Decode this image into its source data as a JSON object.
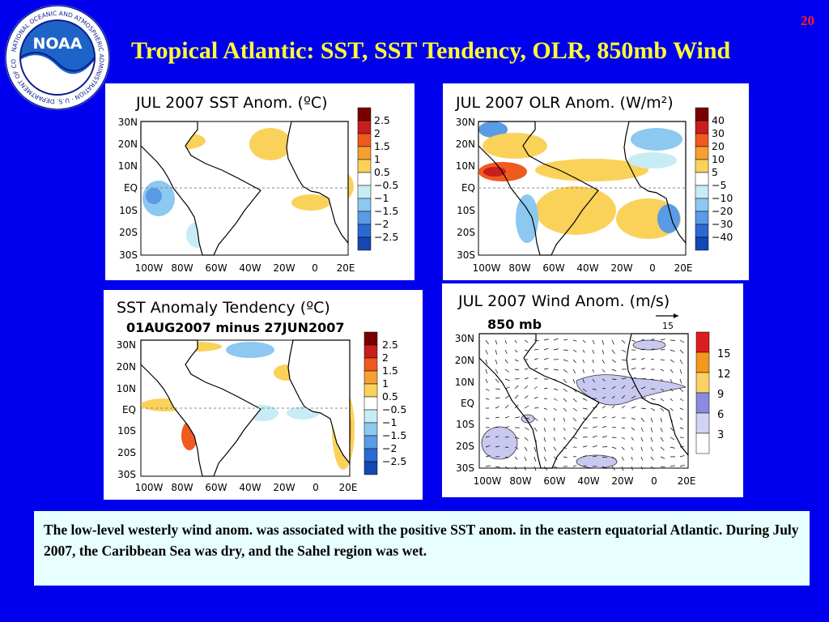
{
  "slide": {
    "page_number": "20",
    "title": "Tropical Atlantic: SST, SST Tendency, OLR, 850mb Wind",
    "caption": "The low-level westerly wind anom. was associated with the positive SST anom. in the eastern equatorial Atlantic. During July 2007, the Caribbean Sea was dry, and the Sahel region was wet."
  },
  "logo": {
    "text": "NOAA",
    "ring_text": "NATIONAL OCEANIC AND ATMOSPHERIC ADMINISTRATION · U.S. DEPARTMENT OF COMMERCE"
  },
  "maps": {
    "y_ticks": [
      "30N",
      "20N",
      "10N",
      "EQ",
      "10S",
      "20S",
      "30S"
    ],
    "x_ticks": [
      "100W",
      "80W",
      "60W",
      "40W",
      "20W",
      "0",
      "20E"
    ]
  },
  "panels": {
    "sst": {
      "title": "JUL 2007 SST Anom. (ºC)",
      "legend": [
        "2.5",
        "2",
        "1.5",
        "1",
        "0.5",
        "−0.5",
        "−1",
        "−1.5",
        "−2",
        "−2.5"
      ],
      "colors": [
        "#7a0000",
        "#c81e1e",
        "#f05a1e",
        "#f5a030",
        "#fad25a",
        "#ffffff",
        "#c8ecf5",
        "#8cc8f0",
        "#5a9be6",
        "#2a6ad2",
        "#1446b4"
      ]
    },
    "olr": {
      "title": "JUL 2007 OLR Anom. (W/m²)",
      "legend": [
        "40",
        "30",
        "20",
        "10",
        "5",
        "−5",
        "−10",
        "−20",
        "−30",
        "−40"
      ],
      "colors": [
        "#7a0000",
        "#c81e1e",
        "#f05a1e",
        "#f5a030",
        "#fad25a",
        "#ffffff",
        "#c8ecf5",
        "#8cc8f0",
        "#5a9be6",
        "#2a6ad2",
        "#1446b4"
      ]
    },
    "tendency": {
      "title": "SST Anomaly Tendency (ºC)",
      "subtitle": "01AUG2007 minus 27JUN2007",
      "legend": [
        "2.5",
        "2",
        "1.5",
        "1",
        "0.5",
        "−0.5",
        "−1",
        "−1.5",
        "−2",
        "−2.5"
      ],
      "colors": [
        "#7a0000",
        "#c81e1e",
        "#f05a1e",
        "#f5a030",
        "#fad25a",
        "#ffffff",
        "#c8ecf5",
        "#8cc8f0",
        "#5a9be6",
        "#2a6ad2",
        "#1446b4"
      ]
    },
    "wind": {
      "title": "JUL 2007 Wind Anom. (m/s)",
      "level": "850 mb",
      "ref_vector": "15",
      "legend": [
        "15",
        "12",
        "9",
        "6",
        "3"
      ],
      "colors": [
        "#dc1e1e",
        "#f5961e",
        "#fad264",
        "#8a8ae0",
        "#d2d2f5",
        "#ffffff"
      ]
    }
  }
}
